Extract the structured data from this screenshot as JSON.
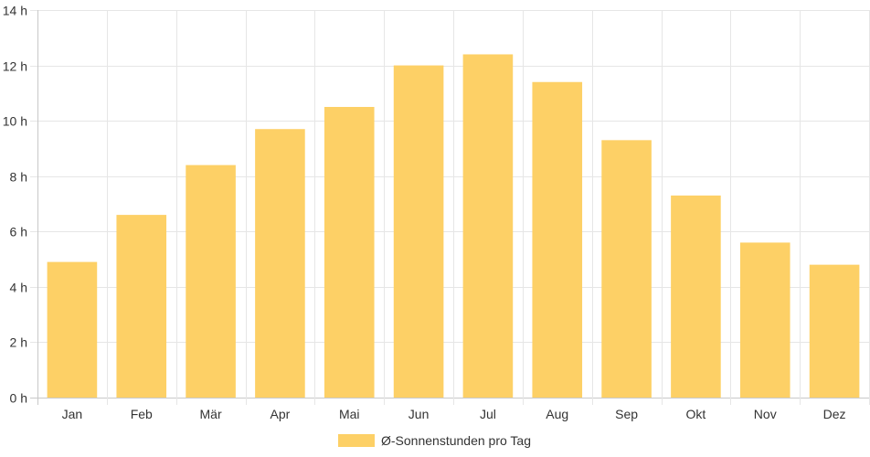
{
  "chart_data": {
    "type": "bar",
    "categories": [
      "Jan",
      "Feb",
      "Mär",
      "Apr",
      "Mai",
      "Jun",
      "Jul",
      "Aug",
      "Sep",
      "Okt",
      "Nov",
      "Dez"
    ],
    "series": [
      {
        "name": "Ø-Sonnenstunden pro Tag",
        "values": [
          4.9,
          6.6,
          8.4,
          9.7,
          10.5,
          12.0,
          12.4,
          11.4,
          9.3,
          7.3,
          5.6,
          4.8
        ],
        "color": "#fdd066"
      }
    ],
    "y_ticks": [
      "0 h",
      "2 h",
      "4 h",
      "6 h",
      "8 h",
      "10 h",
      "12 h",
      "14 h"
    ],
    "ylim": [
      0,
      14
    ],
    "grid": true,
    "legend_position": "bottom"
  }
}
